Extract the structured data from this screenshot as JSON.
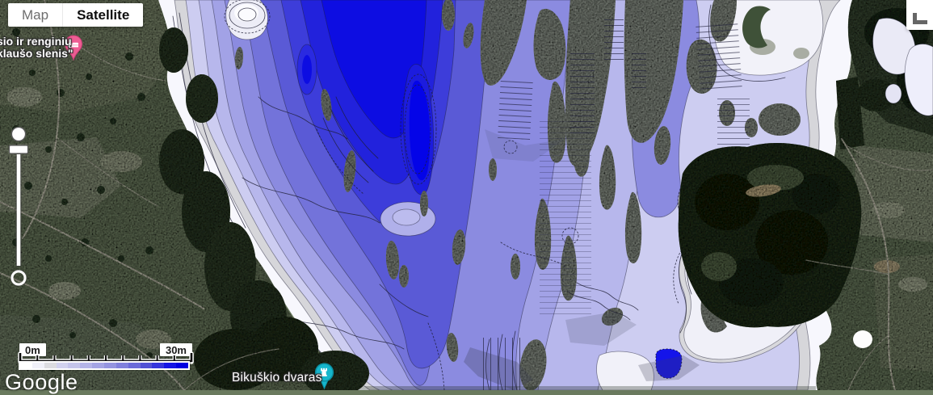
{
  "map_type_control": {
    "map_label": "Map",
    "satellite_label": "Satellite",
    "selected": "Satellite"
  },
  "markers": {
    "lodging": {
      "label_line1": "sio ir renginių",
      "label_line2": "klaušo slenis\"",
      "icon": "bed-icon",
      "pin_color": "#ee5d93"
    },
    "attraction": {
      "label": "Bikuškio dvaras",
      "icon": "castle-icon",
      "pin_color": "#16b6cc"
    }
  },
  "depth_legend": {
    "min_label": "0m",
    "max_label": "30m",
    "gradient_colors": [
      "#ffffff",
      "#f0f0f8",
      "#dcdce0",
      "#d2d2ee",
      "#c4c4ea",
      "#b4b4e8",
      "#a4a4e4",
      "#9494e0",
      "#8080dc",
      "#6a6ad8",
      "#5050d4",
      "#3434dc",
      "#1414e4",
      "#0000e0"
    ]
  },
  "attribution": {
    "logo_text": "Google"
  },
  "overlay_palette": {
    "deepest": "#0d0de2",
    "deep": "#2222dc",
    "mid": "#8b8be0",
    "lavender": "#b7b7ec",
    "shallow_white": "#f7f7fd",
    "gray_band": "#d6d6da",
    "no_data_gray": "#8e958b",
    "contour": "#1d1d33"
  }
}
